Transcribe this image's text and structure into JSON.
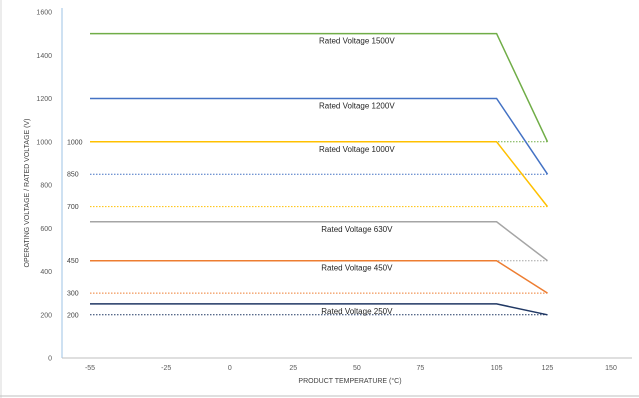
{
  "chart_data": {
    "type": "line",
    "title": "",
    "xlabel": "PRODUCT TEMPERATURE (°C)",
    "ylabel": "OPERATING VOLTAGE / RATED VOLTAGE (V)",
    "xlim": [
      -55,
      150
    ],
    "ylim": [
      0,
      1600
    ],
    "x_ticks": [
      -55,
      -25,
      0,
      25,
      50,
      75,
      105,
      125,
      150
    ],
    "y_ticks": [
      0,
      200,
      400,
      600,
      800,
      1000,
      1200,
      1400,
      1600
    ],
    "grid": false,
    "legend": "none",
    "series": [
      {
        "name": "Rated Voltage 1500V",
        "color": "#70ad47",
        "x": [
          -55,
          105,
          125
        ],
        "y": [
          1500,
          1500,
          1000
        ]
      },
      {
        "name": "Rated Voltage 1200V",
        "color": "#4472c4",
        "x": [
          -55,
          105,
          125
        ],
        "y": [
          1200,
          1200,
          850
        ]
      },
      {
        "name": "Rated Voltage 1000V",
        "color": "#ffc000",
        "x": [
          -55,
          105,
          125
        ],
        "y": [
          1000,
          1000,
          700
        ]
      },
      {
        "name": "Rated Voltage 630V",
        "color": "#a5a5a5",
        "x": [
          -55,
          105,
          125
        ],
        "y": [
          630,
          630,
          450
        ]
      },
      {
        "name": "Rated Voltage 450V",
        "color": "#ed7d31",
        "x": [
          -55,
          105,
          125
        ],
        "y": [
          450,
          450,
          300
        ]
      },
      {
        "name": "Rated Voltage 250V",
        "color": "#203864",
        "x": [
          -55,
          105,
          125
        ],
        "y": [
          250,
          250,
          200
        ]
      }
    ],
    "reference_lines": [
      {
        "label": "1000",
        "value": 1000,
        "color": "#70ad47"
      },
      {
        "label": "850",
        "value": 850,
        "color": "#4472c4"
      },
      {
        "label": "700",
        "value": 700,
        "color": "#ffc000"
      },
      {
        "label": "450",
        "value": 450,
        "color": "#a5a5a5"
      },
      {
        "label": "300",
        "value": 300,
        "color": "#ed7d31"
      },
      {
        "label": "200",
        "value": 200,
        "color": "#203864"
      }
    ]
  }
}
